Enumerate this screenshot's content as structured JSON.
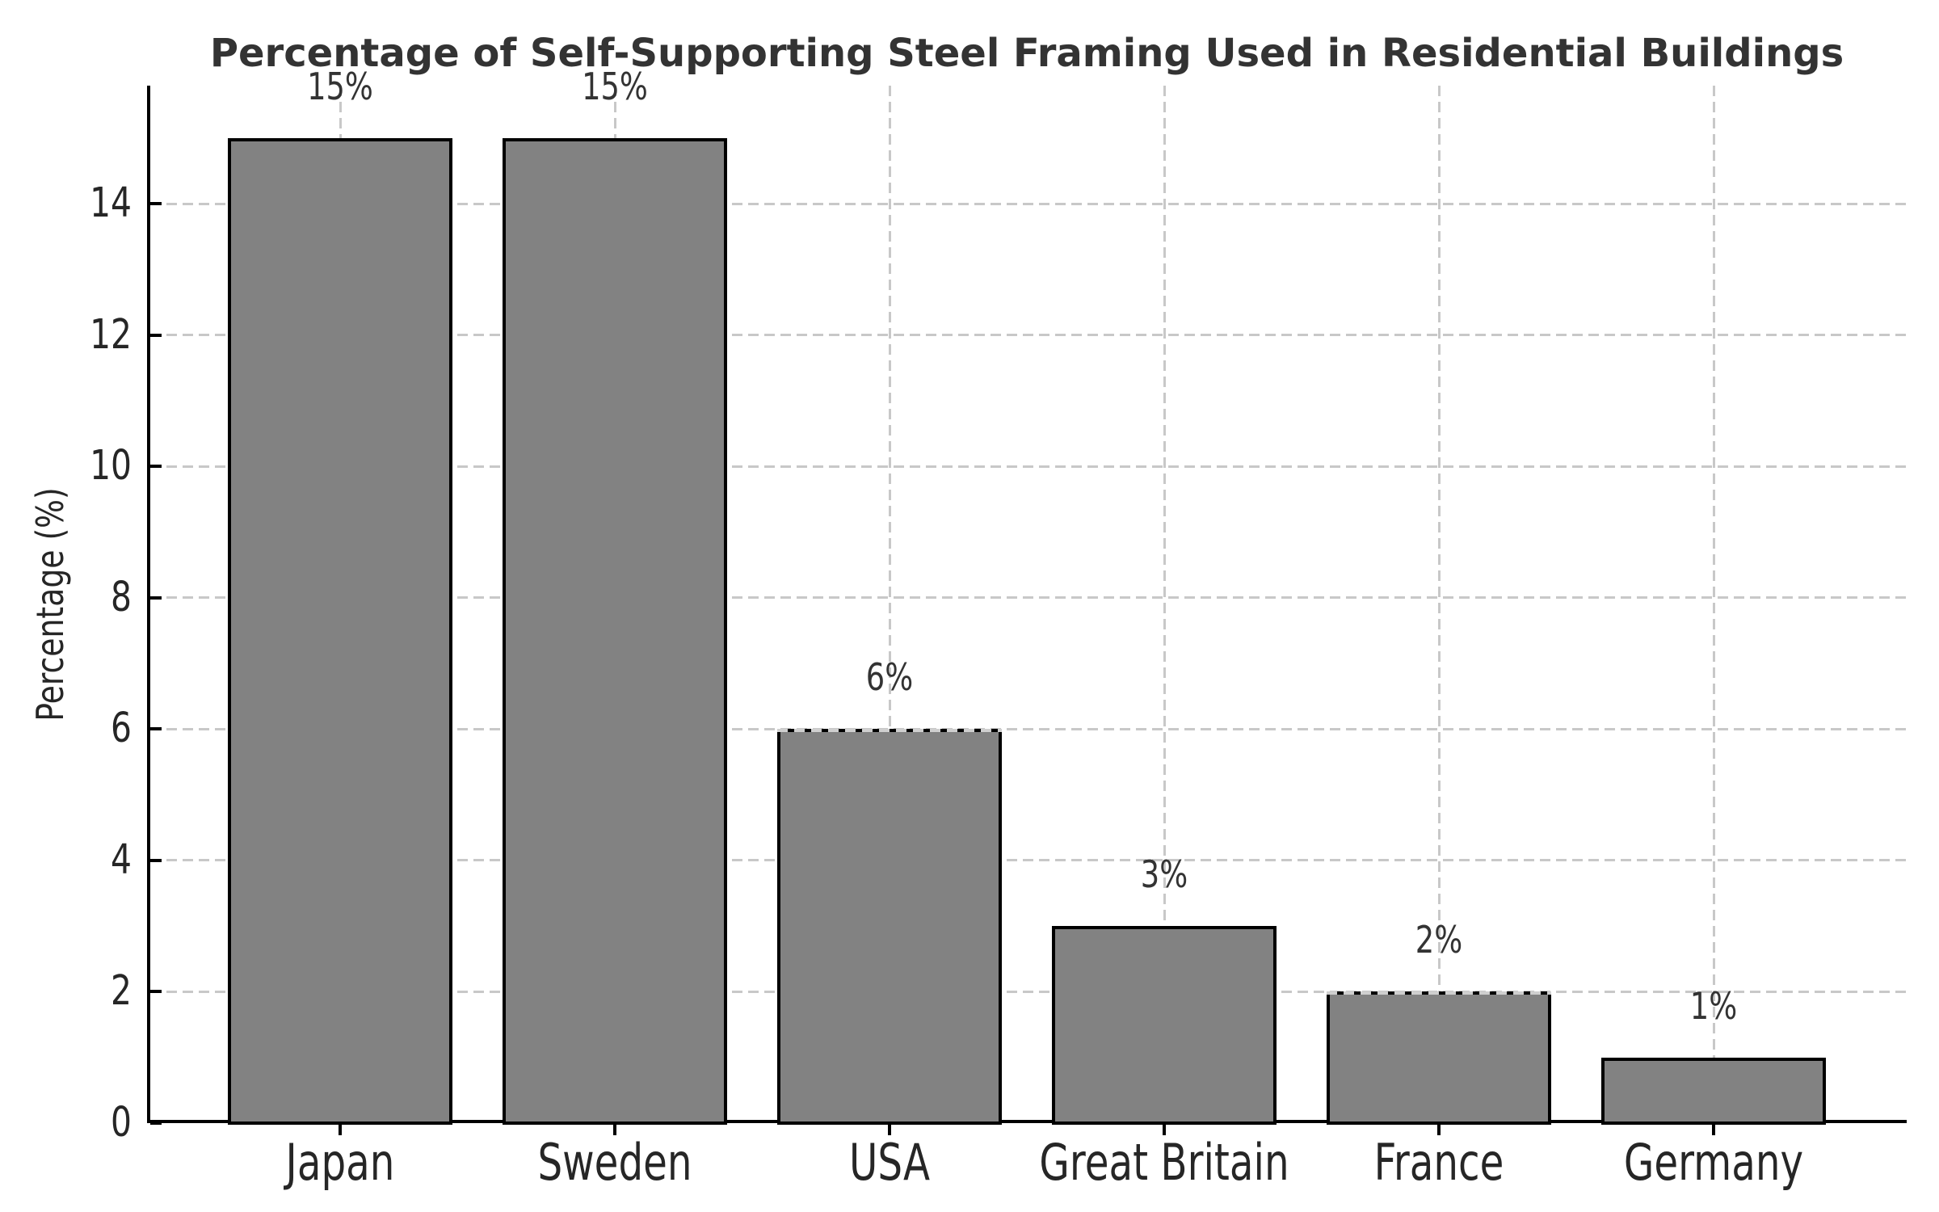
{
  "chart_data": {
    "type": "bar",
    "title": "Percentage of Self-Supporting Steel Framing Used in Residential Buildings",
    "ylabel": "Percentage (%)",
    "xlabel": "",
    "categories": [
      "Japan",
      "Sweden",
      "USA",
      "Great Britain",
      "France",
      "Germany"
    ],
    "values": [
      15,
      15,
      6,
      3,
      2,
      1
    ],
    "bar_labels": [
      "15%",
      "15%",
      "6%",
      "3%",
      "2%",
      "1%"
    ],
    "yticks": [
      0,
      2,
      4,
      6,
      8,
      10,
      12,
      14
    ],
    "ylim": [
      0,
      15.8
    ],
    "grid": {
      "horizontal": true,
      "vertical": true,
      "line_style": "dashed"
    },
    "legend": "none",
    "colors": {
      "background": "#ffffff",
      "bar_fill": "#828282",
      "bar_edge": "#000000",
      "axis_line": "#000000",
      "grid_line": "#c8c8c8",
      "title_text": "#333333",
      "tick_text": "#262626",
      "value_label_text": "#333333"
    }
  }
}
